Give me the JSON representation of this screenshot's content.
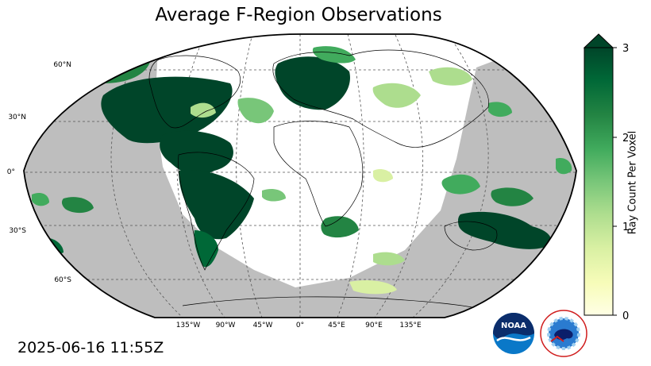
{
  "title": "Average F-Region Observations",
  "timestamp": "2025-06-16 11:55Z",
  "colorbar": {
    "label": "Ray Count Per Voxel",
    "ticks": [
      "0",
      "1",
      "2",
      "3"
    ],
    "vmin": 0,
    "vmax": 3,
    "extend": "max",
    "colormap": "YlGn",
    "colors": [
      "#ffffe5",
      "#f7fcb9",
      "#d9f0a3",
      "#addd8e",
      "#78c679",
      "#41ab5d",
      "#238443",
      "#006837",
      "#004529"
    ]
  },
  "map": {
    "projection": "Robinson",
    "lat_labels": [
      "60°N",
      "30°N",
      "0°",
      "30°S",
      "60°S"
    ],
    "lon_labels": [
      "135°W",
      "90°W",
      "45°W",
      "0°",
      "45°E",
      "90°E",
      "135°E"
    ],
    "night_shading_color": "#bebebe",
    "ocean_color": "#ffffff",
    "gridline_style": "dashed"
  },
  "logos": {
    "noaa": {
      "text": "NOAA"
    },
    "nws": {
      "text": "NATIONAL WEATHER SERVICE"
    }
  }
}
